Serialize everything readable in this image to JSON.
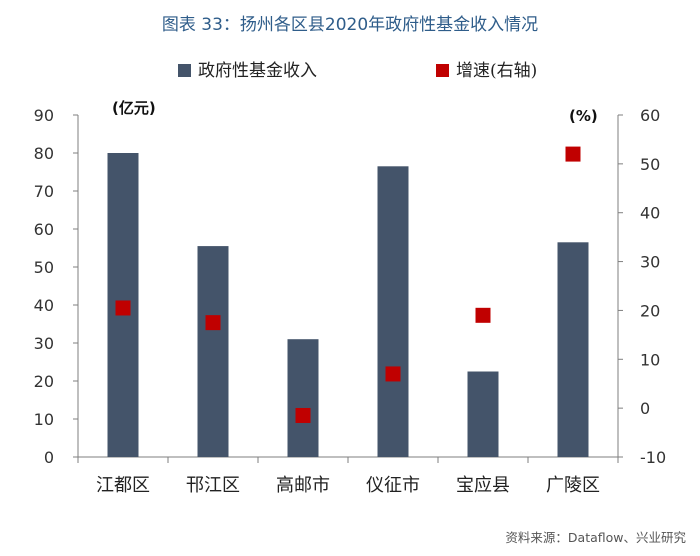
{
  "title": "图表 33：扬州各区县2020年政府性基金收入情况",
  "source": "资料来源：Dataflow、兴业研究",
  "colors": {
    "bar": "#44546a",
    "marker": "#c00000",
    "title": "#2f5d8a",
    "axis": "#7f7f7f"
  },
  "chart_data": {
    "type": "bar",
    "categories": [
      "江都区",
      "邗江区",
      "高邮市",
      "仪征市",
      "宝应县",
      "广陵区"
    ],
    "series": [
      {
        "name": "政府性基金收入",
        "type": "bar",
        "axis": "left",
        "values": [
          80,
          55.5,
          31,
          76.5,
          22.5,
          56.5
        ]
      },
      {
        "name": "增速(右轴)",
        "type": "scatter",
        "axis": "right",
        "values": [
          20.5,
          17.5,
          -1.5,
          7,
          19,
          52
        ]
      }
    ],
    "ylabel_left_unit": "(亿元)",
    "ylabel_right_unit": "(%)",
    "ylim_left": [
      0,
      90
    ],
    "ylim_right": [
      -10,
      60
    ],
    "yticks_left": [
      0,
      10,
      20,
      30,
      40,
      50,
      60,
      70,
      80,
      90
    ],
    "yticks_right": [
      -10,
      0,
      10,
      20,
      30,
      40,
      50,
      60
    ],
    "legend_position": "top",
    "grid": false
  }
}
